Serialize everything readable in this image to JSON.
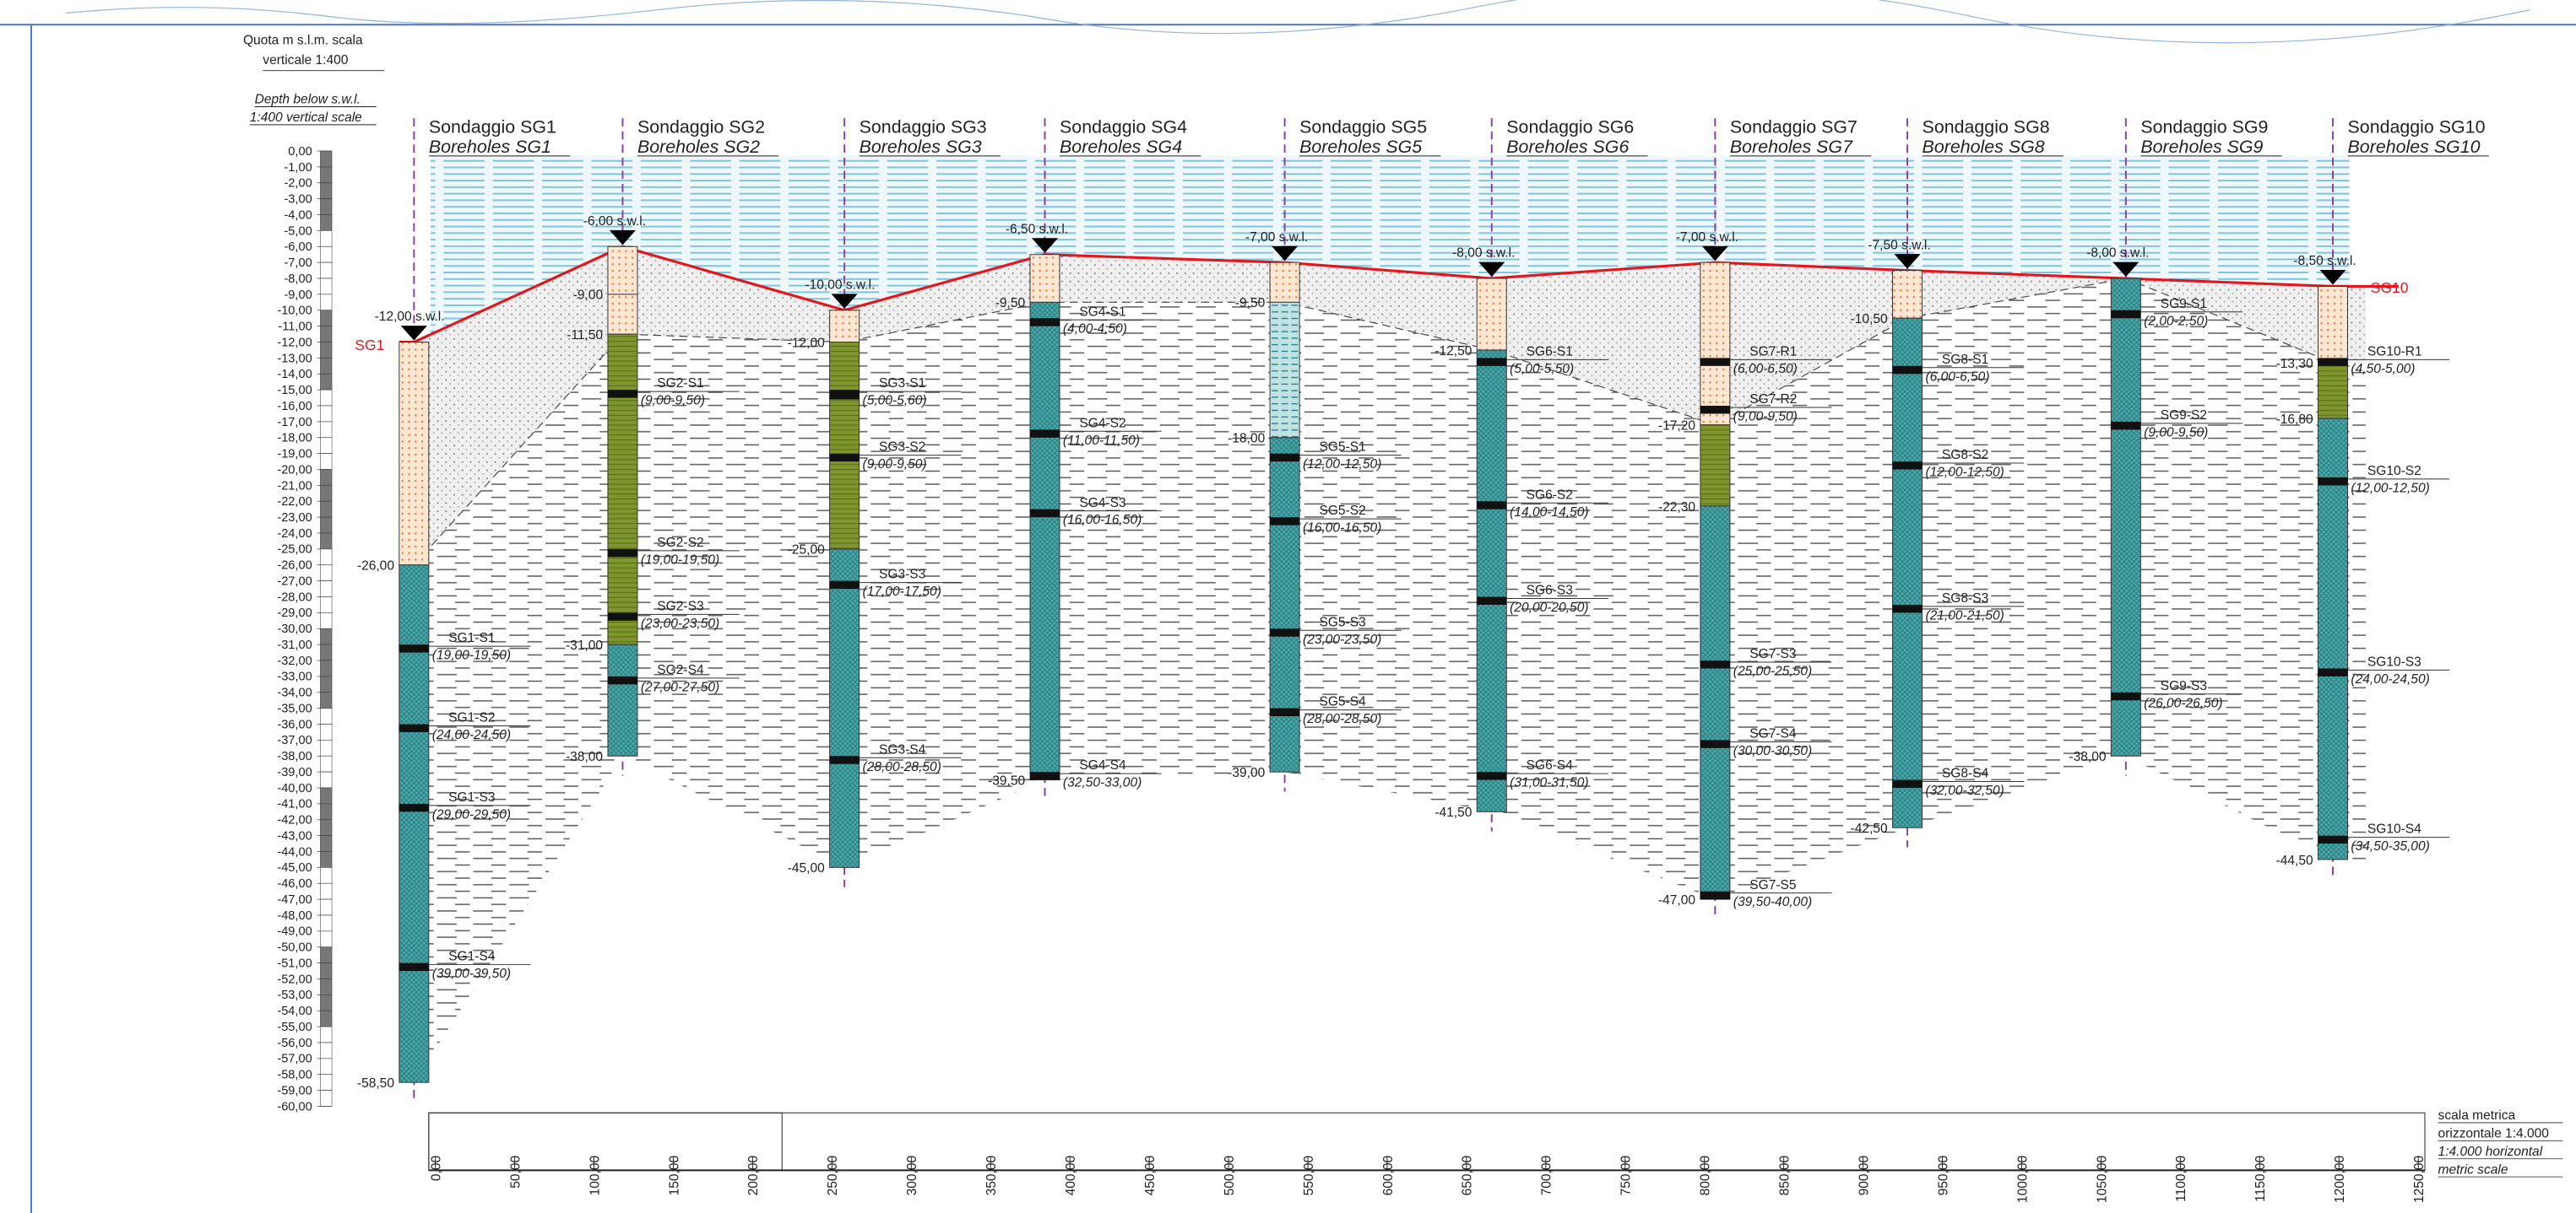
{
  "vertical_scale": {
    "title_lines": [
      "Quota m s.l.m.  scala",
      "verticale 1:400"
    ],
    "subtitle_lines": [
      "Depth below s.w.l.",
      "1:400 vertical scale"
    ],
    "ticks": [
      "0,00",
      "-1,00",
      "-2,00",
      "-3,00",
      "-4,00",
      "-5,00",
      "-6,00",
      "-7,00",
      "-8,00",
      "-9,00",
      "-10,00",
      "-11,00",
      "-12,00",
      "-13,00",
      "-14,00",
      "-15,00",
      "-16,00",
      "-17,00",
      "-18,00",
      "-19,00",
      "-20,00",
      "-21,00",
      "-22,00",
      "-23,00",
      "-24,00",
      "-25,00",
      "-26,00",
      "-27,00",
      "-28,00",
      "-29,00",
      "-30,00",
      "-31,00",
      "-32,00",
      "-33,00",
      "-34,00",
      "-35,00",
      "-36,00",
      "-37,00",
      "-38,00",
      "-39,00",
      "-40,00",
      "-41,00",
      "-42,00",
      "-43,00",
      "-44,00",
      "-45,00",
      "-46,00",
      "-47,00",
      "-48,00",
      "-49,00",
      "-50,00",
      "-51,00",
      "-52,00",
      "-53,00",
      "-54,00",
      "-55,00",
      "-56,00",
      "-57,00",
      "-58,00",
      "-59,00",
      "-60,00"
    ]
  },
  "horizontal_scale": {
    "label_lines": [
      "scala metrica",
      "orizzontale 1:4.000",
      "1:4.000 horizontal",
      "metric scale"
    ],
    "ticks": [
      "0,00",
      "50,00",
      "100,00",
      "150,00",
      "200,00",
      "250,00",
      "300,00",
      "350,00",
      "400,00",
      "450,00",
      "500,00",
      "550,00",
      "600,00",
      "650,00",
      "700,00",
      "750,00",
      "800,00",
      "850,00",
      "900,00",
      "950,00",
      "1000,00",
      "1050,00",
      "1100,00",
      "1150,00",
      "1200,00",
      "1250,00"
    ]
  },
  "boreholes": [
    {
      "title": "Sondaggio SG1",
      "subtitle": "Boreholes SG1",
      "swl": "-12,00 s.w.l.",
      "tag": "SG1",
      "layers": [
        {
          "fill": "orange",
          "bottom": "-26,00"
        },
        {
          "fill": "teal",
          "bottom": "-58,50"
        }
      ],
      "samples": [
        {
          "id": "SG1-S1",
          "range": "(19,00-19,50)"
        },
        {
          "id": "SG1-S2",
          "range": "(24,00-24,50)"
        },
        {
          "id": "SG1-S3",
          "range": "(29,00-29,50)"
        },
        {
          "id": "SG1-S4",
          "range": "(39,00-39,50)"
        }
      ]
    },
    {
      "title": "Sondaggio SG2",
      "subtitle": "Boreholes SG2",
      "swl": "-6,00 s.w.l.",
      "layers": [
        {
          "fill": "orange",
          "bottom": "-9,00"
        },
        {
          "fill": "orange",
          "bottom": "-11,50"
        },
        {
          "fill": "olive",
          "bottom": "-31,00"
        },
        {
          "fill": "teal",
          "bottom": "-38,00"
        }
      ],
      "samples": [
        {
          "id": "SG2-S1",
          "range": "(9,00-9,50)"
        },
        {
          "id": "SG2-S2",
          "range": "(19,00-19,50)"
        },
        {
          "id": "SG2-S3",
          "range": "(23,00-23,50)"
        },
        {
          "id": "SG2-S4",
          "range": "(27,00-27,50)"
        }
      ]
    },
    {
      "title": "Sondaggio SG3",
      "subtitle": "Boreholes SG3",
      "swl": "-10,00 s.w.l.",
      "layers": [
        {
          "fill": "orange",
          "bottom": "-12,00"
        },
        {
          "fill": "olive",
          "bottom": "-25,00"
        },
        {
          "fill": "teal",
          "bottom": "-45,00"
        }
      ],
      "samples": [
        {
          "id": "SG3-S1",
          "range": "(5,00-5,60)"
        },
        {
          "id": "SG3-S2",
          "range": "(9,00-9,50)"
        },
        {
          "id": "SG3-S3",
          "range": "(17,00-17,50)"
        },
        {
          "id": "SG3-S4",
          "range": "(28,00-28,50)"
        }
      ]
    },
    {
      "title": "Sondaggio SG4",
      "subtitle": "Boreholes SG4",
      "swl": "-6,50 s.w.l.",
      "layers": [
        {
          "fill": "orange",
          "bottom": "-9,50"
        },
        {
          "fill": "teal",
          "bottom": "-39,50"
        }
      ],
      "samples": [
        {
          "id": "SG4-S1",
          "range": "(4,00-4,50)"
        },
        {
          "id": "SG4-S2",
          "range": "(11,00-11,50)"
        },
        {
          "id": "SG4-S3",
          "range": "(16,00-16,50)"
        },
        {
          "id": "SG4-S4",
          "range": "(32,50-33,00)"
        }
      ]
    },
    {
      "title": "Sondaggio SG5",
      "subtitle": "Boreholes SG5",
      "swl": "-7,00 s.w.l.",
      "layers": [
        {
          "fill": "orange",
          "bottom": "-9,50"
        },
        {
          "fill": "silt",
          "bottom": "-18,00"
        },
        {
          "fill": "teal",
          "bottom": "-39,00"
        }
      ],
      "samples": [
        {
          "id": "SG5-S1",
          "range": "(12,00-12,50)"
        },
        {
          "id": "SG5-S2",
          "range": "(16,00-16,50)"
        },
        {
          "id": "SG5-S3",
          "range": "(23,00-23,50)"
        },
        {
          "id": "SG5-S4",
          "range": "(28,00-28,50)"
        }
      ]
    },
    {
      "title": "Sondaggio SG6",
      "subtitle": "Boreholes SG6",
      "swl": "-8,00 s.w.l.",
      "layers": [
        {
          "fill": "orange",
          "bottom": "-12,50"
        },
        {
          "fill": "teal",
          "bottom": "-41,50"
        }
      ],
      "samples": [
        {
          "id": "SG6-S1",
          "range": "(5,00-5,50)"
        },
        {
          "id": "SG6-S2",
          "range": "(14,00-14,50)"
        },
        {
          "id": "SG6-S3",
          "range": "(20,00-20,50)"
        },
        {
          "id": "SG6-S4",
          "range": "(31,00-31,50)"
        }
      ]
    },
    {
      "title": "Sondaggio SG7",
      "subtitle": "Boreholes SG7",
      "swl": "-7,00 s.w.l.",
      "layers": [
        {
          "fill": "orange",
          "bottom": "-17,20"
        },
        {
          "fill": "olive",
          "bottom": "-22,30"
        },
        {
          "fill": "teal",
          "bottom": "-47,00"
        }
      ],
      "samples": [
        {
          "id": "SG7-R1",
          "range": "(6,00-6,50)"
        },
        {
          "id": "SG7-R2",
          "range": "(9,00-9,50)"
        },
        {
          "id": "SG7-S3",
          "range": "(25,00-25,50)"
        },
        {
          "id": "SG7-S4",
          "range": "(30,00-30,50)"
        },
        {
          "id": "SG7-S5",
          "range": "(39,50-40,00)"
        }
      ]
    },
    {
      "title": "Sondaggio SG8",
      "subtitle": "Boreholes SG8",
      "swl": "-7,50 s.w.l.",
      "layers": [
        {
          "fill": "orange",
          "bottom": "-10,50"
        },
        {
          "fill": "teal",
          "bottom": "-42,50"
        }
      ],
      "samples": [
        {
          "id": "SG8-S1",
          "range": "(6,00-6,50)"
        },
        {
          "id": "SG8-S2",
          "range": "(12,00-12,50)"
        },
        {
          "id": "SG8-S3",
          "range": "(21,00-21,50)"
        },
        {
          "id": "SG8-S4",
          "range": "(32,00-32,50)"
        }
      ]
    },
    {
      "title": "Sondaggio SG9",
      "subtitle": "Boreholes SG9",
      "swl": "-8,00 s.w.l.",
      "layers": [
        {
          "fill": "teal",
          "bottom": "-38,00"
        }
      ],
      "samples": [
        {
          "id": "SG9-S1",
          "range": "(2,00-2,50)"
        },
        {
          "id": "SG9-S2",
          "range": "(9,00-9,50)"
        },
        {
          "id": "SG9-S3",
          "range": "(26,00-26,50)"
        }
      ]
    },
    {
      "title": "Sondaggio SG10",
      "subtitle": "Boreholes SG10",
      "swl": "-8,50 s.w.l.",
      "tag": "SG10",
      "layers": [
        {
          "fill": "orange",
          "bottom": "-13,30"
        },
        {
          "fill": "olive",
          "bottom": "-16,80"
        },
        {
          "fill": "teal",
          "bottom": "-44,50"
        }
      ],
      "samples": [
        {
          "id": "SG10-R1",
          "range": "(4,50-5,00)"
        },
        {
          "id": "SG10-S2",
          "range": "(12,00-12,50)"
        },
        {
          "id": "SG10-S3",
          "range": "(24,00-24,50)"
        },
        {
          "id": "SG10-S4",
          "range": "(34,50-35,00)"
        }
      ]
    }
  ]
}
